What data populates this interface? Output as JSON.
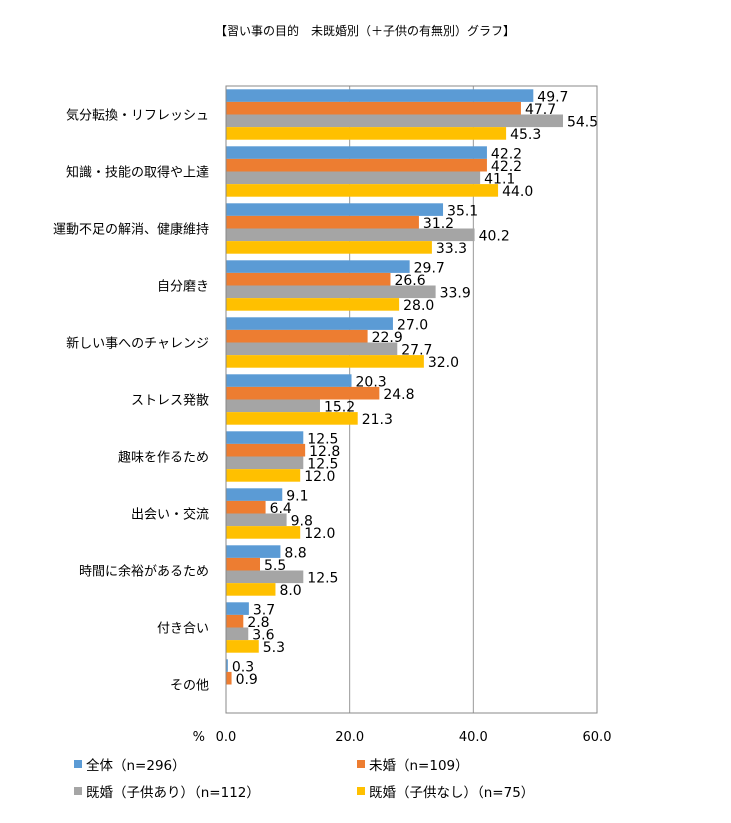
{
  "chart_data": {
    "type": "bar",
    "orientation": "horizontal",
    "title": "【習い事の目的　未既婚別（＋子供の有無別）グラフ】",
    "xlabel": "%",
    "ylabel": "",
    "xlim": [
      0,
      60
    ],
    "x_ticks": [
      "0.0",
      "20.0",
      "40.0",
      "60.0"
    ],
    "grid": true,
    "legend_position": "bottom",
    "categories": [
      "気分転換・リフレッシュ",
      "知識・技能の取得や上達",
      "運動不足の解消、健康維持",
      "自分磨き",
      "新しい事へのチャレンジ",
      "ストレス発散",
      "趣味を作るため",
      "出会い・交流",
      "時間に余裕があるため",
      "付き合い",
      "その他"
    ],
    "series": [
      {
        "name": "全体（n=296）",
        "color": "#5b9bd5",
        "values": [
          49.7,
          42.2,
          35.1,
          29.7,
          27.0,
          20.3,
          12.5,
          9.1,
          8.8,
          3.7,
          0.3
        ]
      },
      {
        "name": "未婚（n=109）",
        "color": "#ed7d31",
        "values": [
          47.7,
          42.2,
          31.2,
          26.6,
          22.9,
          24.8,
          12.8,
          6.4,
          5.5,
          2.8,
          0.9
        ]
      },
      {
        "name": "既婚（子供あり）（n=112）",
        "color": "#a5a5a5",
        "values": [
          54.5,
          41.1,
          40.2,
          33.9,
          27.7,
          15.2,
          12.5,
          9.8,
          12.5,
          3.6,
          null
        ]
      },
      {
        "name": "既婚（子供なし）（n=75）",
        "color": "#ffc000",
        "values": [
          45.3,
          44.0,
          33.3,
          28.0,
          32.0,
          21.3,
          12.0,
          12.0,
          8.0,
          5.3,
          null
        ]
      }
    ]
  }
}
